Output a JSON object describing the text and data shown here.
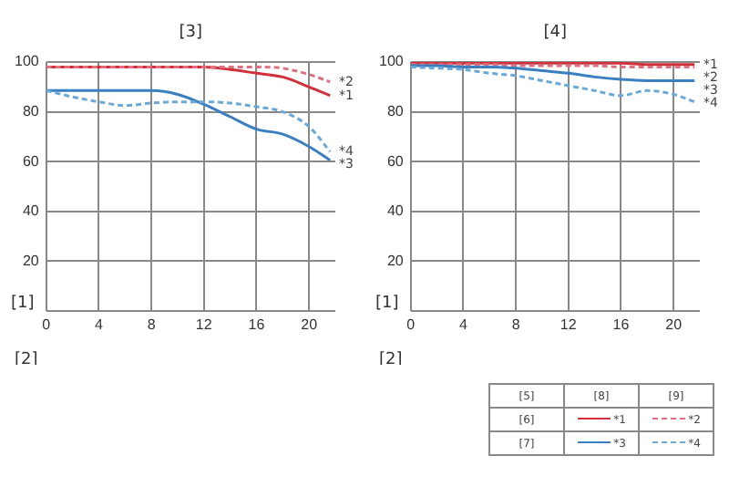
{
  "chart_data": [
    {
      "type": "line",
      "title": "[3]",
      "xlabel": "[2]",
      "ylabel": "[1]",
      "x": [
        0,
        2,
        4,
        6,
        8,
        10,
        12,
        14,
        16,
        18,
        20,
        21.6
      ],
      "xlim": [
        0,
        22
      ],
      "xticks": [
        0,
        4,
        8,
        12,
        16,
        20
      ],
      "ylim": [
        0,
        100
      ],
      "yticks": [
        {
          "value": 0,
          "label": null
        },
        20,
        40,
        60,
        80,
        100
      ],
      "grid": true,
      "marker": "none",
      "series": [
        {
          "name": "*1",
          "color": "#d0313c",
          "line_style": "solid",
          "values": [
            98,
            98,
            98,
            98,
            98,
            98,
            98,
            97,
            95.5,
            94,
            90,
            86.5
          ]
        },
        {
          "name": "*2",
          "color": "#e07080",
          "line_style": "dashed",
          "values": [
            98,
            98,
            98,
            98,
            98,
            98,
            98,
            98,
            98,
            97.5,
            95,
            92
          ]
        },
        {
          "name": "*3",
          "color": "#3a7fc0",
          "line_style": "solid",
          "values": [
            88.5,
            88.5,
            88.5,
            88.5,
            88.5,
            87,
            83,
            78,
            73,
            71,
            66,
            60.5
          ]
        },
        {
          "name": "*4",
          "color": "#6aa8d8",
          "line_style": "dashed",
          "values": [
            88.5,
            86,
            84,
            82.5,
            83.5,
            84,
            84,
            83.5,
            82,
            80,
            74,
            64
          ]
        }
      ]
    },
    {
      "type": "line",
      "title": "[4]",
      "xlabel": "[2]",
      "ylabel": "[1]",
      "x": [
        0,
        2,
        4,
        6,
        8,
        10,
        12,
        14,
        16,
        18,
        20,
        21.6
      ],
      "xlim": [
        0,
        22
      ],
      "xticks": [
        0,
        4,
        8,
        12,
        16,
        20
      ],
      "ylim": [
        0,
        100
      ],
      "yticks": [
        {
          "value": 0,
          "label": null
        },
        20,
        40,
        60,
        80,
        100
      ],
      "grid": true,
      "marker": "none",
      "series": [
        {
          "name": "*1",
          "color": "#d0313c",
          "line_style": "solid",
          "values": [
            99.5,
            99.5,
            99.5,
            99.5,
            99.5,
            99.5,
            99.5,
            99.5,
            99.5,
            99,
            99,
            99
          ]
        },
        {
          "name": "*2",
          "color": "#e07080",
          "line_style": "dashed",
          "values": [
            99,
            99,
            99,
            99,
            98.5,
            98.5,
            98.5,
            98.5,
            98,
            98,
            98,
            98
          ]
        },
        {
          "name": "*3",
          "color": "#3a7fc0",
          "line_style": "solid",
          "values": [
            98.5,
            98.5,
            98,
            98,
            97.5,
            96.5,
            95.5,
            94,
            93,
            92.5,
            92.5,
            92.5
          ]
        },
        {
          "name": "*4",
          "color": "#6aa8d8",
          "line_style": "dashed",
          "values": [
            98,
            97.5,
            97,
            95.5,
            94.5,
            92.5,
            90.5,
            88.5,
            86.5,
            88.5,
            87,
            84
          ]
        }
      ]
    },
    {
      "type": "other",
      "annotations": [
        "[5]",
        "[8]",
        "[9]",
        "[6]",
        "*1",
        "*2",
        "[7]",
        "*3",
        "*4"
      ]
    }
  ]
}
